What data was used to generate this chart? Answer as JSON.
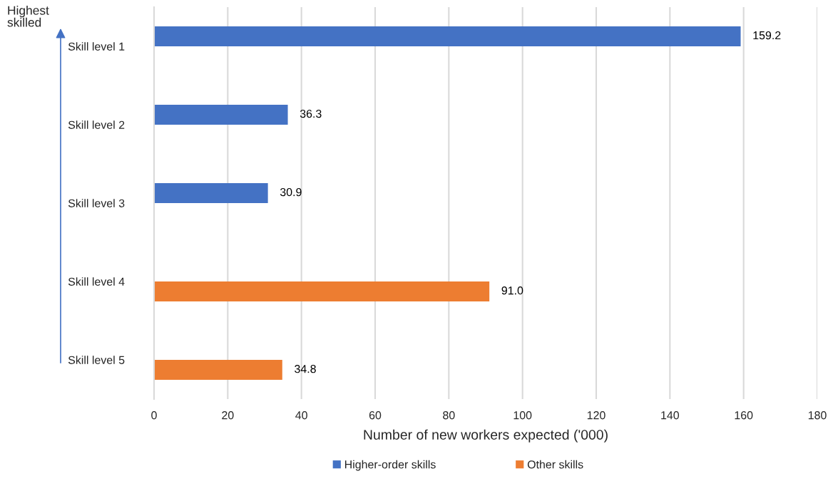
{
  "chart_data": {
    "type": "bar",
    "orientation": "horizontal",
    "xlabel": "Number of new workers expected ('000)",
    "categories": [
      "Skill level 1",
      "Skill level 2",
      "Skill level 3",
      "Skill level 4",
      "Skill level 5"
    ],
    "series": [
      {
        "name": "Higher-order skills",
        "color": "#4472c4",
        "values": [
          159.2,
          36.3,
          30.9,
          null,
          null
        ],
        "value_labels": [
          "159.2",
          "36.3",
          "30.9",
          null,
          null
        ]
      },
      {
        "name": "Other skills",
        "color": "#ed7d31",
        "values": [
          null,
          null,
          null,
          91.0,
          34.8
        ],
        "value_labels": [
          null,
          null,
          null,
          "91.0",
          "34.8"
        ]
      }
    ],
    "xlim": [
      0,
      180
    ],
    "xticks": [
      0,
      20,
      40,
      60,
      80,
      100,
      120,
      140,
      160,
      180
    ],
    "grid": "x",
    "legend": "bottom",
    "annotations": [
      "Highest skilled"
    ]
  }
}
